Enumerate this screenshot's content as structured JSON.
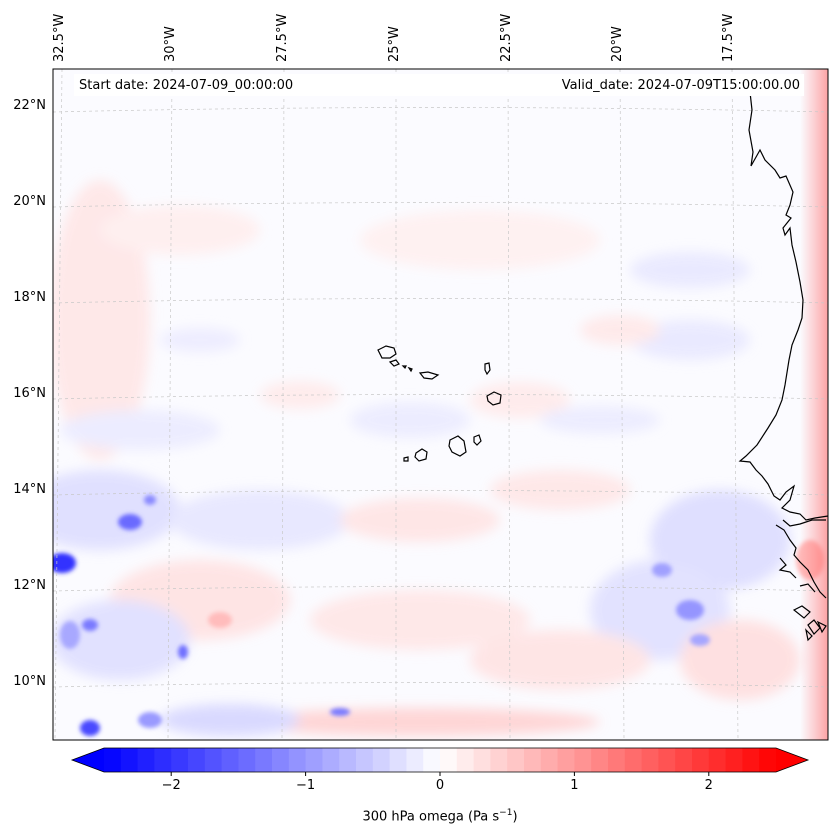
{
  "map": {
    "start_date": "Start date: 2024-07-09_00:00:00",
    "valid_date": "Valid_date: 2024-07-09T15:00:00.00",
    "lon_labels": [
      "32.5°W",
      "30°W",
      "27.5°W",
      "25°W",
      "22.5°W",
      "20°W",
      "17.5°W"
    ],
    "lat_labels": [
      "22°N",
      "20°N",
      "18°N",
      "16°N",
      "14°N",
      "12°N",
      "10°N"
    ],
    "features": [
      "cape-verde-islands",
      "west-africa-coastline"
    ]
  },
  "colorbar": {
    "label_prefix": "300 hPa omega (Pa s",
    "label_exp": "−1",
    "label_suffix": ")",
    "ticks": [
      "−2",
      "−1",
      "0",
      "1",
      "2"
    ],
    "tick_values": [
      -2,
      -1,
      0,
      1,
      2
    ],
    "range": [
      -2.5,
      2.5
    ],
    "extend": "both",
    "colormap": "bwr"
  },
  "colors": {
    "negative": "#0000ff",
    "neutral": "#ffffff",
    "positive": "#ff0000",
    "coast": "#000000",
    "grid": "#c8c8c8"
  }
}
